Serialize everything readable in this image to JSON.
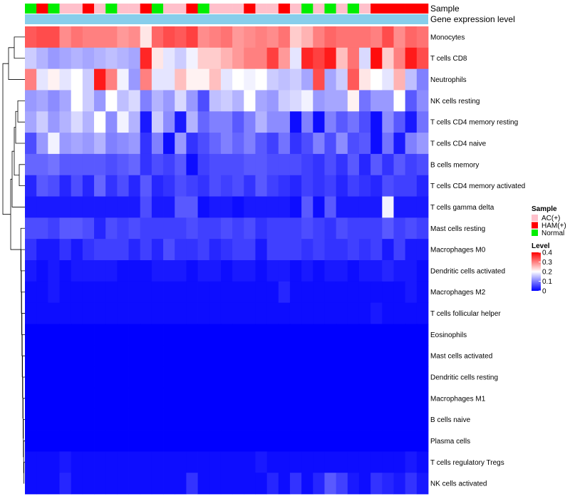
{
  "chart_data": {
    "type": "heatmap",
    "annotation_titles": {
      "sample": "Sample",
      "expression": "Gene expression level"
    },
    "rows": [
      "Monocytes",
      "T cells CD8",
      "Neutrophils",
      "NK cells resting",
      "T cells CD4 memory resting",
      "T cells CD4 naive",
      "B cells memory",
      "T cells CD4 memory activated",
      "T cells gamma delta",
      "Mast cells resting",
      "Macrophages M0",
      "Dendritic cells activated",
      "Macrophages M2",
      "T cells follicular helper",
      "Eosinophils",
      "Mast cells activated",
      "Dendritic cells resting",
      "Macrophages M1",
      "B cells naive",
      "Plasma cells",
      "T cells regulatory  Tregs",
      "NK cells activated"
    ],
    "sample_groups": [
      "Normal",
      "HAM(+)",
      "Normal",
      "AC(+)",
      "AC(+)",
      "HAM(+)",
      "AC(+)",
      "Normal",
      "AC(+)",
      "AC(+)",
      "HAM(+)",
      "Normal",
      "AC(+)",
      "AC(+)",
      "HAM(+)",
      "Normal",
      "AC(+)",
      "AC(+)",
      "AC(+)",
      "HAM(+)",
      "AC(+)",
      "AC(+)",
      "HAM(+)",
      "AC(+)",
      "Normal",
      "AC(+)",
      "Normal",
      "AC(+)",
      "Normal",
      "AC(+)",
      "HAM(+)",
      "HAM(+)",
      "HAM(+)",
      "HAM(+)",
      "HAM(+)"
    ],
    "values": [
      [
        0.33,
        0.34,
        0.34,
        0.29,
        0.31,
        0.3,
        0.3,
        0.3,
        0.28,
        0.29,
        0.22,
        0.32,
        0.34,
        0.33,
        0.35,
        0.29,
        0.3,
        0.31,
        0.28,
        0.29,
        0.3,
        0.29,
        0.31,
        0.24,
        0.26,
        0.3,
        0.32,
        0.31,
        0.31,
        0.31,
        0.3,
        0.34,
        0.29,
        0.32,
        0.31
      ],
      [
        0.16,
        0.14,
        0.12,
        0.13,
        0.14,
        0.13,
        0.14,
        0.15,
        0.14,
        0.13,
        0.37,
        0.22,
        0.18,
        0.16,
        0.19,
        0.24,
        0.24,
        0.26,
        0.28,
        0.3,
        0.3,
        0.35,
        0.28,
        0.18,
        0.37,
        0.35,
        0.38,
        0.25,
        0.31,
        0.17,
        0.39,
        0.24,
        0.3,
        0.38,
        0.34
      ],
      [
        0.3,
        0.18,
        0.21,
        0.18,
        0.2,
        0.16,
        0.38,
        0.3,
        0.19,
        0.12,
        0.3,
        0.18,
        0.18,
        0.25,
        0.21,
        0.21,
        0.25,
        0.18,
        0.2,
        0.19,
        0.2,
        0.16,
        0.15,
        0.16,
        0.13,
        0.34,
        0.13,
        0.16,
        0.33,
        0.22,
        0.2,
        0.18,
        0.26,
        0.15,
        0.1
      ],
      [
        0.12,
        0.13,
        0.11,
        0.13,
        0.2,
        0.16,
        0.12,
        0.2,
        0.15,
        0.17,
        0.1,
        0.14,
        0.12,
        0.17,
        0.12,
        0.06,
        0.15,
        0.16,
        0.14,
        0.2,
        0.13,
        0.12,
        0.16,
        0.17,
        0.19,
        0.12,
        0.13,
        0.13,
        0.21,
        0.09,
        0.12,
        0.12,
        0.2,
        0.07,
        0.11
      ],
      [
        0.13,
        0.16,
        0.12,
        0.14,
        0.17,
        0.14,
        0.2,
        0.11,
        0.19,
        0.14,
        0.02,
        0.16,
        0.11,
        0.02,
        0.14,
        0.08,
        0.1,
        0.1,
        0.07,
        0.1,
        0.14,
        0.11,
        0.11,
        0.01,
        0.1,
        0.01,
        0.1,
        0.07,
        0.09,
        0.06,
        0.01,
        0.11,
        0.07,
        0.02,
        0.09
      ],
      [
        0.06,
        0.12,
        0.19,
        0.12,
        0.13,
        0.12,
        0.14,
        0.1,
        0.11,
        0.12,
        0.04,
        0.1,
        0.01,
        0.12,
        0.04,
        0.06,
        0.08,
        0.1,
        0.08,
        0.1,
        0.07,
        0.05,
        0.09,
        0.04,
        0.06,
        0.1,
        0.06,
        0.11,
        0.06,
        0.07,
        0.01,
        0.09,
        0.02,
        0.1,
        0.12
      ],
      [
        0.08,
        0.08,
        0.09,
        0.07,
        0.07,
        0.07,
        0.07,
        0.06,
        0.07,
        0.08,
        0.04,
        0.06,
        0.05,
        0.07,
        0.01,
        0.05,
        0.06,
        0.06,
        0.06,
        0.07,
        0.07,
        0.06,
        0.06,
        0.06,
        0.05,
        0.04,
        0.06,
        0.04,
        0.07,
        0.03,
        0.07,
        0.04,
        0.07,
        0.05,
        0.06
      ],
      [
        0.03,
        0.07,
        0.06,
        0.03,
        0.06,
        0.03,
        0.08,
        0.04,
        0.06,
        0.03,
        0.07,
        0.03,
        0.04,
        0.06,
        0.05,
        0.04,
        0.06,
        0.05,
        0.06,
        0.04,
        0.07,
        0.05,
        0.04,
        0.03,
        0.05,
        0.04,
        0.05,
        0.03,
        0.05,
        0.04,
        0.03,
        0.06,
        0.05,
        0.05,
        0.03
      ],
      [
        0.02,
        0.02,
        0.02,
        0.02,
        0.02,
        0.02,
        0.02,
        0.02,
        0.02,
        0.02,
        0.06,
        0.02,
        0.02,
        0.07,
        0.07,
        0.01,
        0.02,
        0.02,
        0.01,
        0.02,
        0.02,
        0.02,
        0.02,
        0.01,
        0.07,
        0.01,
        0.07,
        0.02,
        0.02,
        0.02,
        0.02,
        0.19,
        0.02,
        0.02,
        0.02
      ],
      [
        0.06,
        0.06,
        0.05,
        0.07,
        0.07,
        0.06,
        0.03,
        0.06,
        0.05,
        0.06,
        0.05,
        0.05,
        0.05,
        0.05,
        0.06,
        0.05,
        0.05,
        0.06,
        0.05,
        0.06,
        0.04,
        0.05,
        0.05,
        0.05,
        0.06,
        0.05,
        0.04,
        0.06,
        0.05,
        0.05,
        0.05,
        0.07,
        0.05,
        0.06,
        0.05
      ],
      [
        0.04,
        0.02,
        0.02,
        0.04,
        0.02,
        0.04,
        0.05,
        0.05,
        0.05,
        0.03,
        0.05,
        0.03,
        0.06,
        0.04,
        0.04,
        0.05,
        0.03,
        0.04,
        0.05,
        0.05,
        0.02,
        0.05,
        0.05,
        0.05,
        0.04,
        0.05,
        0.04,
        0.04,
        0.05,
        0.04,
        0.05,
        0.02,
        0.05,
        0.02,
        0.02
      ],
      [
        0.02,
        0.01,
        0.02,
        0.01,
        0.02,
        0.02,
        0.02,
        0.02,
        0.01,
        0.01,
        0.01,
        0.02,
        0.02,
        0.02,
        0.01,
        0.02,
        0.02,
        0.01,
        0.02,
        0.02,
        0.01,
        0.02,
        0.02,
        0.01,
        0.02,
        0.01,
        0.02,
        0.02,
        0.01,
        0.02,
        0.02,
        0.03,
        0.02,
        0.02,
        0.01
      ],
      [
        0.01,
        0.01,
        0.02,
        0.01,
        0.01,
        0.01,
        0.01,
        0.01,
        0.01,
        0.01,
        0.01,
        0.01,
        0.01,
        0.01,
        0.01,
        0.01,
        0.01,
        0.01,
        0.01,
        0.01,
        0.01,
        0.01,
        0.03,
        0.01,
        0.01,
        0.01,
        0.01,
        0.01,
        0.01,
        0.01,
        0.01,
        0.01,
        0.01,
        0.02,
        0.01
      ],
      [
        0.01,
        0.01,
        0.01,
        0.01,
        0.01,
        0.01,
        0.01,
        0.01,
        0.01,
        0.01,
        0.01,
        0.01,
        0.01,
        0.01,
        0.01,
        0.01,
        0.01,
        0.01,
        0.01,
        0.01,
        0.01,
        0.01,
        0.01,
        0.01,
        0.01,
        0.01,
        0.01,
        0.01,
        0.01,
        0.01,
        0.02,
        0.01,
        0.01,
        0.01,
        0.01
      ],
      [
        0,
        0,
        0,
        0,
        0,
        0,
        0,
        0,
        0,
        0,
        0,
        0,
        0,
        0,
        0,
        0,
        0,
        0,
        0,
        0,
        0,
        0,
        0,
        0,
        0,
        0,
        0,
        0,
        0,
        0,
        0,
        0,
        0,
        0,
        0
      ],
      [
        0,
        0,
        0,
        0,
        0,
        0,
        0,
        0,
        0,
        0,
        0,
        0,
        0,
        0,
        0,
        0,
        0,
        0,
        0,
        0,
        0,
        0,
        0,
        0,
        0,
        0,
        0,
        0,
        0,
        0,
        0,
        0,
        0,
        0,
        0
      ],
      [
        0,
        0,
        0,
        0,
        0,
        0,
        0,
        0,
        0,
        0,
        0,
        0,
        0,
        0,
        0,
        0,
        0,
        0,
        0,
        0,
        0,
        0,
        0,
        0,
        0,
        0,
        0,
        0,
        0,
        0,
        0,
        0,
        0,
        0,
        0
      ],
      [
        0,
        0,
        0,
        0,
        0,
        0,
        0,
        0,
        0,
        0,
        0,
        0,
        0,
        0,
        0,
        0,
        0,
        0,
        0,
        0,
        0,
        0,
        0,
        0,
        0,
        0,
        0,
        0,
        0,
        0,
        0,
        0,
        0,
        0,
        0
      ],
      [
        0,
        0,
        0,
        0,
        0,
        0,
        0,
        0,
        0,
        0,
        0,
        0,
        0,
        0,
        0,
        0,
        0,
        0,
        0,
        0,
        0,
        0,
        0,
        0,
        0,
        0,
        0,
        0,
        0,
        0,
        0,
        0,
        0,
        0,
        0
      ],
      [
        0,
        0,
        0,
        0,
        0,
        0,
        0,
        0,
        0,
        0,
        0,
        0,
        0,
        0,
        0,
        0,
        0,
        0,
        0,
        0,
        0,
        0,
        0,
        0,
        0,
        0,
        0,
        0,
        0,
        0,
        0,
        0,
        0,
        0,
        0
      ],
      [
        0.01,
        0.01,
        0.01,
        0.02,
        0.01,
        0.01,
        0.01,
        0.01,
        0.01,
        0.01,
        0.01,
        0.01,
        0.01,
        0.01,
        0.01,
        0.01,
        0.01,
        0.01,
        0.01,
        0.01,
        0.02,
        0.01,
        0.01,
        0.01,
        0.01,
        0.01,
        0.01,
        0.01,
        0.01,
        0.01,
        0.01,
        0.01,
        0.01,
        0.02,
        0.01
      ],
      [
        0.01,
        0.01,
        0.01,
        0.03,
        0.01,
        0.01,
        0.01,
        0.01,
        0.01,
        0.01,
        0.01,
        0.01,
        0.01,
        0.01,
        0.04,
        0.01,
        0.01,
        0.01,
        0.01,
        0.01,
        0.01,
        0.03,
        0.01,
        0.04,
        0.01,
        0.03,
        0.07,
        0.05,
        0.02,
        0.01,
        0.04,
        0.03,
        0.02,
        0.04,
        0.02
      ]
    ],
    "legend": {
      "sample_title": "Sample",
      "groups": [
        {
          "name": "AC(+)",
          "color": "#ffc0cb"
        },
        {
          "name": "HAM(+)",
          "color": "#ff0000"
        },
        {
          "name": "Normal",
          "color": "#00ee00"
        }
      ],
      "level_title": "Level",
      "level_ticks": [
        0.4,
        0.3,
        0.2,
        0.1,
        0
      ],
      "level_range": [
        0,
        0.4
      ]
    },
    "colors": {
      "low": "#0000ff",
      "mid": "#ffffff",
      "high": "#ff0000",
      "expression_bar": "#87ceeb"
    }
  }
}
